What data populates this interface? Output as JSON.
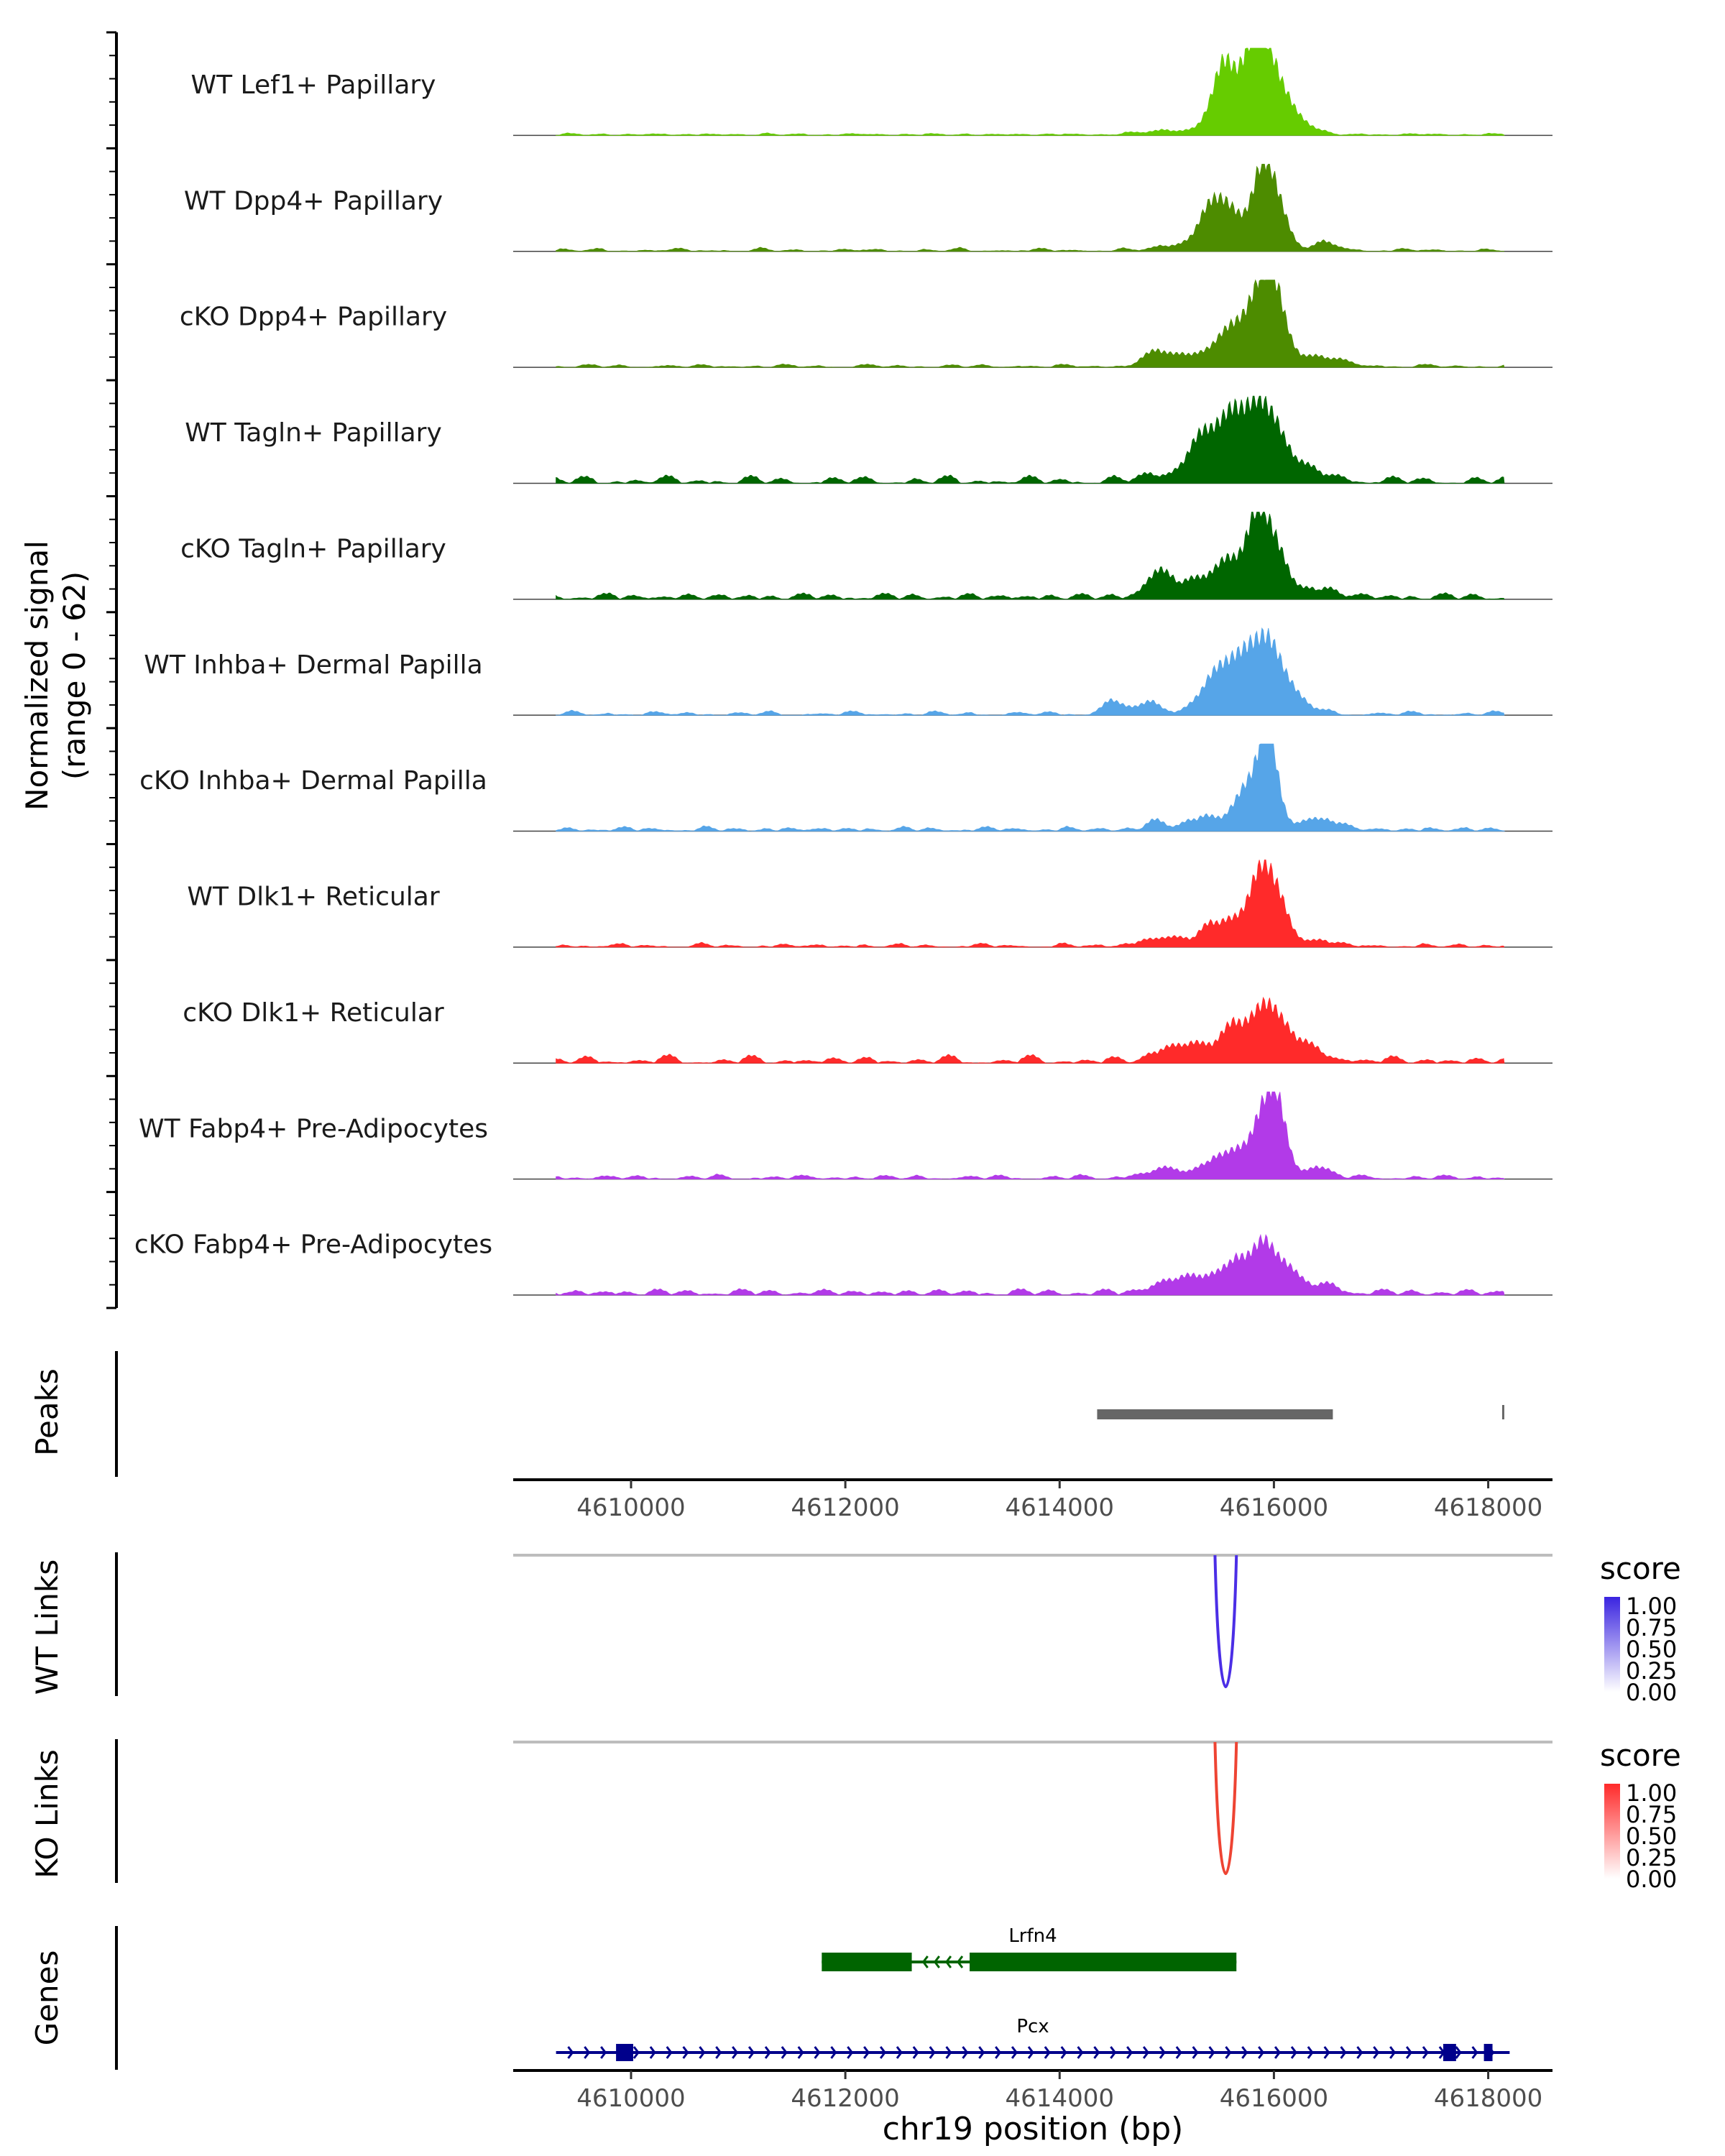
{
  "chart_data": {
    "type": "area",
    "chromosome": "chr19",
    "x_range": [
      4608900,
      4618600
    ],
    "x_ticks": [
      4610000,
      4612000,
      4614000,
      4616000,
      4618000
    ],
    "tick_labels": [
      "4610000",
      "4612000",
      "4614000",
      "4616000",
      "4618000"
    ],
    "coverage": {
      "ylabel_line1": "Normalized signal",
      "ylabel_line2": "(range 0 - 62)",
      "ylim": [
        0,
        62
      ],
      "tracks": [
        {
          "name": "WT Lef1+ Papillary",
          "color": "#66cc00",
          "noise": [
            [
              4612500,
              0.4
            ],
            [
              4614800,
              1.2
            ],
            [
              4616800,
              0.8
            ]
          ],
          "peaks": [
            [
              4615050,
              250,
              3
            ],
            [
              4615450,
              110,
              14
            ],
            [
              4615550,
              90,
              40
            ],
            [
              4615750,
              90,
              35
            ],
            [
              4615880,
              100,
              52
            ],
            [
              4616050,
              120,
              30
            ],
            [
              4616300,
              120,
              6
            ]
          ]
        },
        {
          "name": "WT Dpp4+ Papillary",
          "color": "#4d8c00",
          "noise": [
            [
              4613300,
              0.6
            ],
            [
              4614300,
              1.4
            ],
            [
              4617200,
              0.8
            ]
          ],
          "peaks": [
            [
              4615200,
              220,
              5
            ],
            [
              4615420,
              110,
              28
            ],
            [
              4615600,
              100,
              22
            ],
            [
              4615880,
              100,
              48
            ],
            [
              4616020,
              110,
              30
            ],
            [
              4616500,
              120,
              5
            ]
          ]
        },
        {
          "name": "cKO Dpp4+ Papillary",
          "color": "#4d8c00",
          "noise": [
            [
              4611800,
              0.8
            ],
            [
              4614000,
              1.2
            ],
            [
              4616800,
              1
            ]
          ],
          "peaks": [
            [
              4614900,
              120,
              8
            ],
            [
              4615300,
              250,
              9
            ],
            [
              4615600,
              130,
              20
            ],
            [
              4615850,
              120,
              38
            ],
            [
              4616000,
              110,
              46
            ],
            [
              4616400,
              220,
              7
            ]
          ]
        },
        {
          "name": "WT Tagln+ Papillary",
          "color": "#006600",
          "noise": [
            [
              4610500,
              2
            ],
            [
              4613000,
              2
            ],
            [
              4614800,
              2
            ],
            [
              4617300,
              2
            ]
          ],
          "peaks": [
            [
              4615000,
              200,
              5
            ],
            [
              4615380,
              150,
              35
            ],
            [
              4615620,
              100,
              24
            ],
            [
              4615850,
              150,
              52
            ],
            [
              4616100,
              150,
              18
            ],
            [
              4616500,
              120,
              5
            ]
          ]
        },
        {
          "name": "cKO Tagln+ Papillary",
          "color": "#006600",
          "noise": [
            [
              4610500,
              2
            ],
            [
              4612500,
              2
            ],
            [
              4614500,
              2
            ],
            [
              4617500,
              2
            ]
          ],
          "peaks": [
            [
              4614900,
              110,
              14
            ],
            [
              4615300,
              250,
              12
            ],
            [
              4615600,
              130,
              22
            ],
            [
              4615850,
              90,
              50
            ],
            [
              4616020,
              110,
              32
            ],
            [
              4616400,
              180,
              6
            ]
          ]
        },
        {
          "name": "WT Inhba+ Dermal Papilla",
          "color": "#56a5e8",
          "noise": [
            [
              4611000,
              1.2
            ],
            [
              4613500,
              1.6
            ],
            [
              4617200,
              1.2
            ]
          ],
          "peaks": [
            [
              4614500,
              90,
              10
            ],
            [
              4614850,
              90,
              10
            ],
            [
              4615450,
              160,
              22
            ],
            [
              4615700,
              150,
              30
            ],
            [
              4615950,
              140,
              44
            ],
            [
              4616200,
              170,
              8
            ]
          ]
        },
        {
          "name": "cKO Inhba+ Dermal Papilla",
          "color": "#56a5e8",
          "noise": [
            [
              4610800,
              1.2
            ],
            [
              4611500,
              2
            ],
            [
              4613600,
              1.2
            ],
            [
              4617700,
              1.2
            ]
          ],
          "peaks": [
            [
              4614900,
              80,
              7
            ],
            [
              4615350,
              150,
              9
            ],
            [
              4615750,
              120,
              30
            ],
            [
              4615950,
              90,
              62
            ],
            [
              4616350,
              100,
              8
            ],
            [
              4616550,
              100,
              5
            ]
          ]
        },
        {
          "name": "WT Dlk1+ Reticular",
          "color": "#ff2a2a",
          "noise": [
            [
              4611600,
              1.2
            ],
            [
              4614300,
              1.4
            ],
            [
              4617400,
              1.2
            ]
          ],
          "peaks": [
            [
              4615000,
              220,
              6
            ],
            [
              4615400,
              90,
              14
            ],
            [
              4615600,
              90,
              16
            ],
            [
              4615850,
              110,
              42
            ],
            [
              4616020,
              110,
              33
            ],
            [
              4616400,
              120,
              5
            ]
          ]
        },
        {
          "name": "cKO Dlk1+ Reticular",
          "color": "#ff2a2a",
          "noise": [
            [
              4610500,
              2
            ],
            [
              4612700,
              2
            ],
            [
              4614600,
              2
            ],
            [
              4617200,
              2
            ]
          ],
          "peaks": [
            [
              4615050,
              150,
              10
            ],
            [
              4615350,
              150,
              10
            ],
            [
              4615650,
              120,
              22
            ],
            [
              4615920,
              120,
              38
            ],
            [
              4616150,
              120,
              16
            ],
            [
              4616450,
              150,
              5
            ]
          ]
        },
        {
          "name": "WT Fabp4+ Pre-Adipocytes",
          "color": "#b23ae8",
          "noise": [
            [
              4613000,
              1.6
            ],
            [
              4614800,
              1.8
            ],
            [
              4617300,
              1.2
            ]
          ],
          "peaks": [
            [
              4615000,
              200,
              6
            ],
            [
              4615450,
              120,
              12
            ],
            [
              4615650,
              100,
              16
            ],
            [
              4615920,
              110,
              48
            ],
            [
              4616050,
              90,
              30
            ],
            [
              4616400,
              120,
              8
            ]
          ]
        },
        {
          "name": "cKO Fabp4+ Pre-Adipocytes",
          "color": "#b23ae8",
          "noise": [
            [
              4610500,
              2
            ],
            [
              4612500,
              2.2
            ],
            [
              4614500,
              2
            ],
            [
              4617500,
              2
            ]
          ],
          "peaks": [
            [
              4615000,
              150,
              8
            ],
            [
              4615350,
              160,
              12
            ],
            [
              4615650,
              100,
              22
            ],
            [
              4615880,
              90,
              32
            ],
            [
              4616080,
              110,
              22
            ],
            [
              4616450,
              150,
              6
            ]
          ]
        }
      ]
    },
    "peaks_track": {
      "label": "Peaks",
      "color": "#666666",
      "regions": [
        [
          4614350,
          4616550
        ],
        [
          4618130,
          4618150
        ]
      ]
    },
    "link_tracks": [
      {
        "label": "WT Links",
        "legend_title": "score",
        "color": "#4b2ee6",
        "legend_color": "#3a24e0",
        "link": [
          4615450,
          4615650
        ],
        "legend_ticks": [
          "1.00",
          "0.75",
          "0.50",
          "0.25",
          "0.00"
        ]
      },
      {
        "label": "KO Links",
        "legend_title": "score",
        "color": "#ee4433",
        "legend_color": "#ff2a2a",
        "link": [
          4615450,
          4615650
        ],
        "legend_ticks": [
          "1.00",
          "0.75",
          "0.50",
          "0.25",
          "0.00"
        ]
      }
    ],
    "genes_track": {
      "label": "Genes",
      "genes": [
        {
          "name": "Lrfn4",
          "color": "#006400",
          "strand": "-",
          "start": 4611780,
          "end": 4615650,
          "exons": [
            [
              4611780,
              4612620
            ],
            [
              4613160,
              4615650
            ]
          ]
        },
        {
          "name": "Pcx",
          "color": "#00008b",
          "strand": "+",
          "start": 4609300,
          "end": 4618200,
          "exons": [
            [
              4609860,
              4610020
            ],
            [
              4617580,
              4617700
            ],
            [
              4617960,
              4618040
            ]
          ]
        }
      ]
    },
    "xlabel": "chr19 position (bp)"
  }
}
